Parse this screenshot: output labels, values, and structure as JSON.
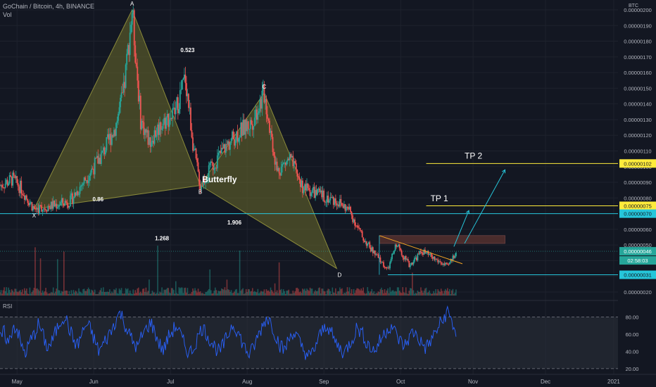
{
  "header": {
    "symbol_line": "GoChain / Bitcoin, 4h, BINANCE",
    "volume_label": "Vol",
    "currency": "BTC"
  },
  "rsi_label": "RSI",
  "colors": {
    "background": "#131722",
    "up": "#26a69a",
    "down": "#ef5350",
    "pattern_fill": "#6b6b2c",
    "teal_line": "#26c6da",
    "yellow_line": "#ffeb3b",
    "rsi_line": "#2962ff",
    "trend_line": "#f5a623"
  },
  "chart_data": [
    {
      "type": "candlestick",
      "title": "GoChain / Bitcoin, 4h, BINANCE",
      "y_unit": "BTC",
      "y_ticks": [
        "0.00000200",
        "0.00000190",
        "0.00000180",
        "0.00000170",
        "0.00000160",
        "0.00000150",
        "0.00000140",
        "0.00000130",
        "0.00000120",
        "0.00000110",
        "0.00000100",
        "0.00000090",
        "0.00000080",
        "0.00000070",
        "0.00000060",
        "0.00000050",
        "0.00000040",
        "0.00000030",
        "0.00000020"
      ],
      "ylim": [
        2e-07,
        2e-06
      ],
      "x_ticks": [
        "May",
        "Jun",
        "Jul",
        "Aug",
        "Sep",
        "Oct",
        "Nov",
        "Dec",
        "2021"
      ],
      "price_path": [
        {
          "t": 0,
          "p": 8.8e-07
        },
        {
          "t": 6,
          "p": 9.2e-07
        },
        {
          "t": 10,
          "p": 8.6e-07
        },
        {
          "t": 16,
          "p": 7.3e-07
        },
        {
          "t": 24,
          "p": 7.5e-07
        },
        {
          "t": 33,
          "p": 7.8e-07
        },
        {
          "t": 40,
          "p": 9.2e-07
        },
        {
          "t": 48,
          "p": 1.08e-06
        },
        {
          "t": 54,
          "p": 1.25e-06
        },
        {
          "t": 58,
          "p": 1.47e-06
        },
        {
          "t": 62,
          "p": 2e-06
        },
        {
          "t": 66,
          "p": 1.3e-06
        },
        {
          "t": 70,
          "p": 1.16e-06
        },
        {
          "t": 76,
          "p": 1.28e-06
        },
        {
          "t": 82,
          "p": 1.34e-06
        },
        {
          "t": 87,
          "p": 1.57e-06
        },
        {
          "t": 91,
          "p": 1.1e-06
        },
        {
          "t": 94,
          "p": 8.8e-07
        },
        {
          "t": 100,
          "p": 1.01e-06
        },
        {
          "t": 106,
          "p": 1.13e-06
        },
        {
          "t": 112,
          "p": 1.22e-06
        },
        {
          "t": 118,
          "p": 1.28e-06
        },
        {
          "t": 124,
          "p": 1.47e-06
        },
        {
          "t": 130,
          "p": 9.7e-07
        },
        {
          "t": 136,
          "p": 1.05e-06
        },
        {
          "t": 142,
          "p": 8.7e-07
        },
        {
          "t": 150,
          "p": 8.2e-07
        },
        {
          "t": 158,
          "p": 7.8e-07
        },
        {
          "t": 164,
          "p": 7.2e-07
        },
        {
          "t": 170,
          "p": 5.5e-07
        },
        {
          "t": 176,
          "p": 4.4e-07
        },
        {
          "t": 182,
          "p": 3.4e-07
        },
        {
          "t": 186,
          "p": 5.1e-07
        },
        {
          "t": 192,
          "p": 3.7e-07
        },
        {
          "t": 198,
          "p": 4.6e-07
        },
        {
          "t": 204,
          "p": 4.1e-07
        },
        {
          "t": 210,
          "p": 3.6e-07
        },
        {
          "t": 214,
          "p": 4.6e-07
        }
      ],
      "last_price": "0.00000046",
      "countdown": "02:58:03",
      "horizontal_levels": [
        {
          "price": 1.02e-06,
          "label": "0.00000102",
          "color": "#ffeb3b"
        },
        {
          "price": 7.5e-07,
          "label": "0.00000075",
          "color": "#ffeb3b"
        },
        {
          "price": 7e-07,
          "label": "0.00000070",
          "color": "#26c6da"
        },
        {
          "price": 3.1e-07,
          "label": "0.00000031",
          "color": "#26c6da"
        }
      ],
      "harmonic_pattern": {
        "name": "Butterfly",
        "points": {
          "X": {
            "t": 16,
            "p": 7.3e-07
          },
          "A": {
            "t": 62,
            "p": 2e-06
          },
          "B": {
            "t": 94,
            "p": 8.8e-07
          },
          "C": {
            "t": 124,
            "p": 1.47e-06
          },
          "D": {
            "t": 158,
            "p": 3.5e-07
          }
        },
        "ratios": [
          "0.523",
          "0.86",
          "1.906",
          "1.268"
        ]
      },
      "targets": [
        "TP 1",
        "TP 2"
      ],
      "grid": true
    },
    {
      "type": "line",
      "title": "RSI",
      "y_ticks": [
        "80.00",
        "60.00",
        "40.00",
        "20.00"
      ],
      "ylim": [
        15,
        95
      ],
      "bands": [
        80,
        20
      ],
      "series": [
        {
          "values": [
            55,
            62,
            48,
            70,
            66,
            45,
            38,
            52,
            60,
            72,
            58,
            44,
            50,
            63,
            75,
            82,
            68,
            54,
            47,
            60,
            71,
            66,
            52,
            40,
            48,
            57,
            65,
            78,
            85,
            72,
            60,
            50,
            44,
            58,
            66,
            74,
            62,
            49,
            41,
            55,
            63,
            70,
            58,
            46,
            38,
            44,
            57,
            68,
            61,
            52,
            45,
            39,
            48,
            59,
            72,
            66,
            54,
            43,
            36,
            45,
            58,
            70,
            80,
            74,
            60,
            48,
            41,
            52,
            63,
            57,
            46,
            39,
            33,
            42,
            55,
            64,
            72,
            61,
            50,
            44,
            38,
            47,
            56,
            68,
            62,
            53,
            45,
            40,
            49,
            58,
            66,
            71,
            60,
            52,
            46,
            55,
            63,
            58,
            49,
            44,
            51,
            60,
            69,
            76,
            88,
            74,
            62
          ]
        }
      ],
      "grid": true
    }
  ]
}
